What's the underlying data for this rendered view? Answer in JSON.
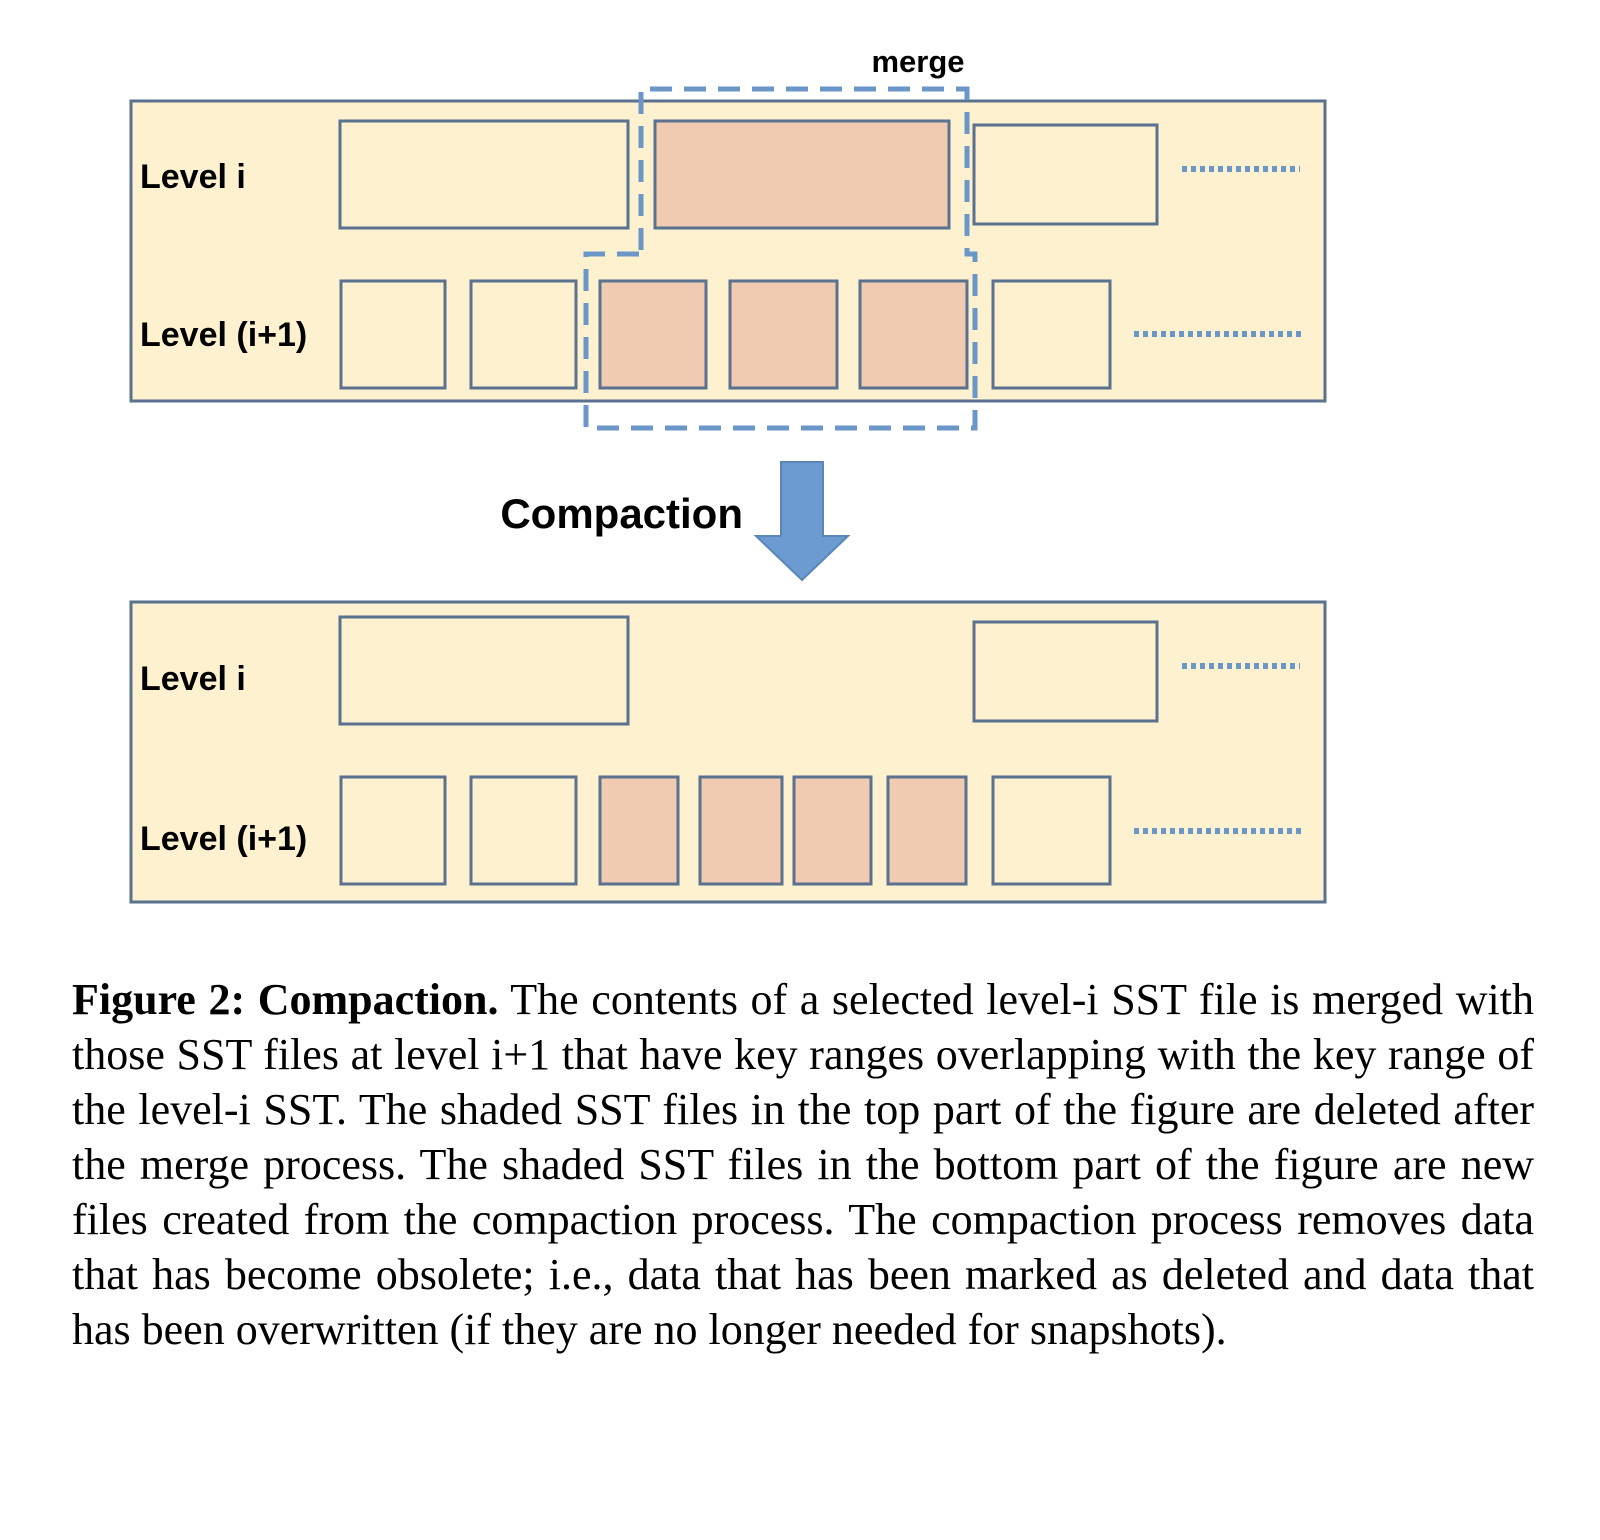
{
  "diagram": {
    "merge_label": "merge",
    "compaction_label": "Compaction",
    "colors": {
      "panel_fill": "#fdf1cf",
      "file_fill": "#fdf1cf",
      "shaded_fill": "#f0cbb2",
      "border": "#5a7190",
      "dashed": "#6a96c8",
      "arrow": "#6b9bd0"
    },
    "before": {
      "level_i_label": "Level i",
      "level_i1_label": "Level (i+1)"
    },
    "after": {
      "level_i_label": "Level i",
      "level_i1_label": "Level (i+1)"
    }
  },
  "caption": {
    "title": "Figure 2: Compaction.",
    "text": "The contents of a selected level-i SST file is merged with those SST files at level i+1 that have key ranges overlapping with the key range of the level-i SST. The shaded SST files in the top part of the figure are deleted after the merge process. The shaded SST files in the bottom part of the figure are new files created from the compaction process. The compaction process removes data that has become obsolete; i.e., data that has been marked as deleted and data that has been overwritten (if they are no longer needed for snapshots)."
  }
}
